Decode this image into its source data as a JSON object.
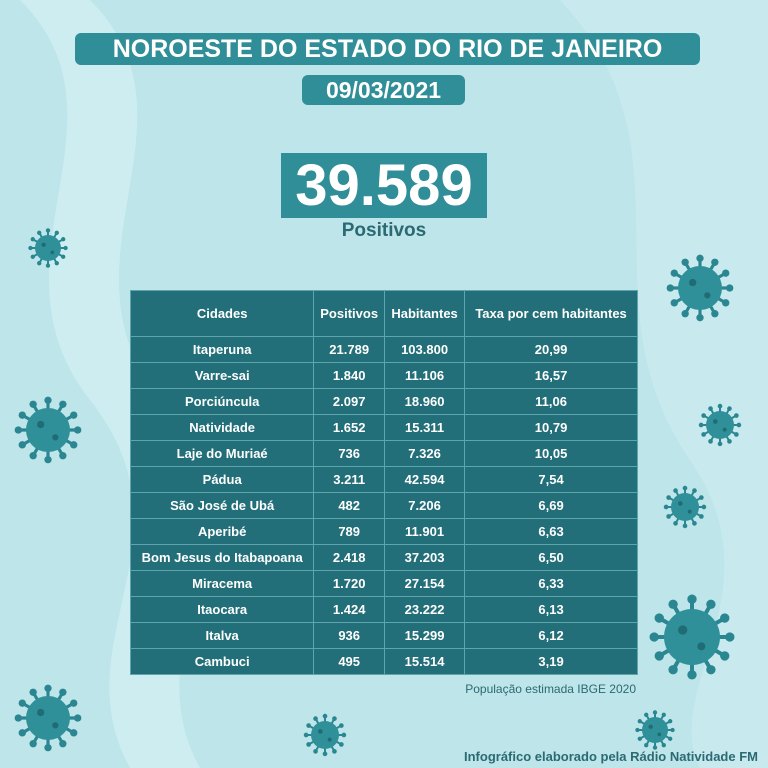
{
  "header": {
    "title": "NOROESTE DO ESTADO DO RIO DE JANEIRO",
    "date": "09/03/2021"
  },
  "total": {
    "value": "39.589",
    "label": "Positivos"
  },
  "table": {
    "headers": [
      "Cidades",
      "Positivos",
      "Habitantes",
      "Taxa por cem habitantes"
    ],
    "rows": [
      [
        "Itaperuna",
        "21.789",
        "103.800",
        "20,99"
      ],
      [
        "Varre-sai",
        "1.840",
        "11.106",
        "16,57"
      ],
      [
        "Porciúncula",
        "2.097",
        "18.960",
        "11,06"
      ],
      [
        "Natividade",
        "1.652",
        "15.311",
        "10,79"
      ],
      [
        "Laje do Muriaé",
        "736",
        "7.326",
        "10,05"
      ],
      [
        "Pádua",
        "3.211",
        "42.594",
        "7,54"
      ],
      [
        "São José de Ubá",
        "482",
        "7.206",
        "6,69"
      ],
      [
        "Aperibé",
        "789",
        "11.901",
        "6,63"
      ],
      [
        "Bom Jesus do Itabapoana",
        "2.418",
        "37.203",
        "6,50"
      ],
      [
        "Miracema",
        "1.720",
        "27.154",
        "6,33"
      ],
      [
        "Itaocara",
        "1.424",
        "23.222",
        "6,13"
      ],
      [
        "Italva",
        "936",
        "15.299",
        "6,12"
      ],
      [
        "Cambuci",
        "495",
        "15.514",
        "3,19"
      ]
    ]
  },
  "footnote": "População estimada IBGE 2020",
  "credit": "Infográfico elaborado pela Rádio Natividade FM"
}
